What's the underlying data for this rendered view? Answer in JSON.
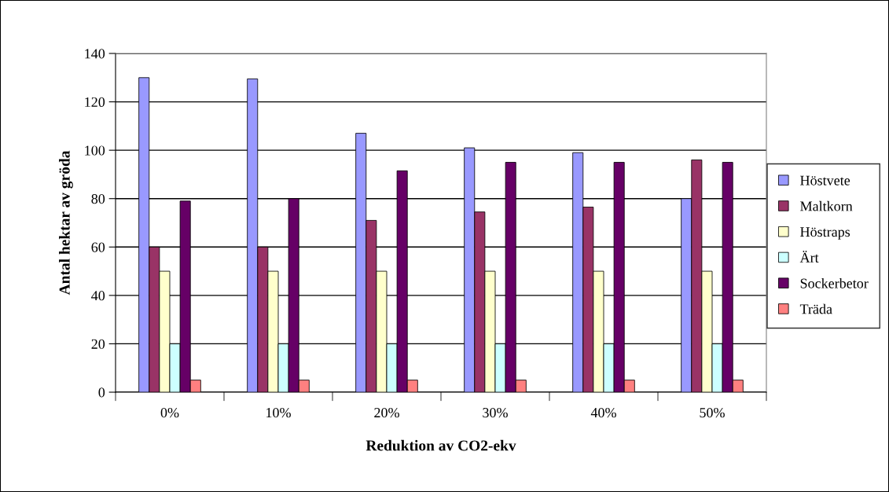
{
  "chart_data": {
    "type": "bar",
    "xlabel": "Reduktion av CO2-ekv",
    "ylabel": "Antal hektar av gröda",
    "categories": [
      "0%",
      "10%",
      "20%",
      "30%",
      "40%",
      "50%"
    ],
    "series": [
      {
        "name": "Höstvete",
        "color": "#9999ff",
        "values": [
          130,
          129.5,
          107,
          101,
          99,
          80
        ]
      },
      {
        "name": "Maltkorn",
        "color": "#993366",
        "values": [
          60,
          60,
          71,
          74.5,
          76.5,
          96
        ]
      },
      {
        "name": "Höstraps",
        "color": "#ffffcc",
        "values": [
          50,
          50,
          50,
          50,
          50,
          50
        ]
      },
      {
        "name": "Ärt",
        "color": "#ccffff",
        "values": [
          20,
          20,
          20,
          20,
          20,
          20
        ]
      },
      {
        "name": "Sockerbetor",
        "color": "#660066",
        "values": [
          79,
          80,
          91.5,
          95,
          95,
          95
        ]
      },
      {
        "name": "Träda",
        "color": "#ff8080",
        "values": [
          5,
          5,
          5,
          5,
          5,
          5
        ]
      }
    ],
    "ylim": [
      0,
      140
    ],
    "yticks": [
      0,
      20,
      40,
      60,
      80,
      100,
      120,
      140
    ],
    "grid": "y",
    "legend": "right"
  }
}
